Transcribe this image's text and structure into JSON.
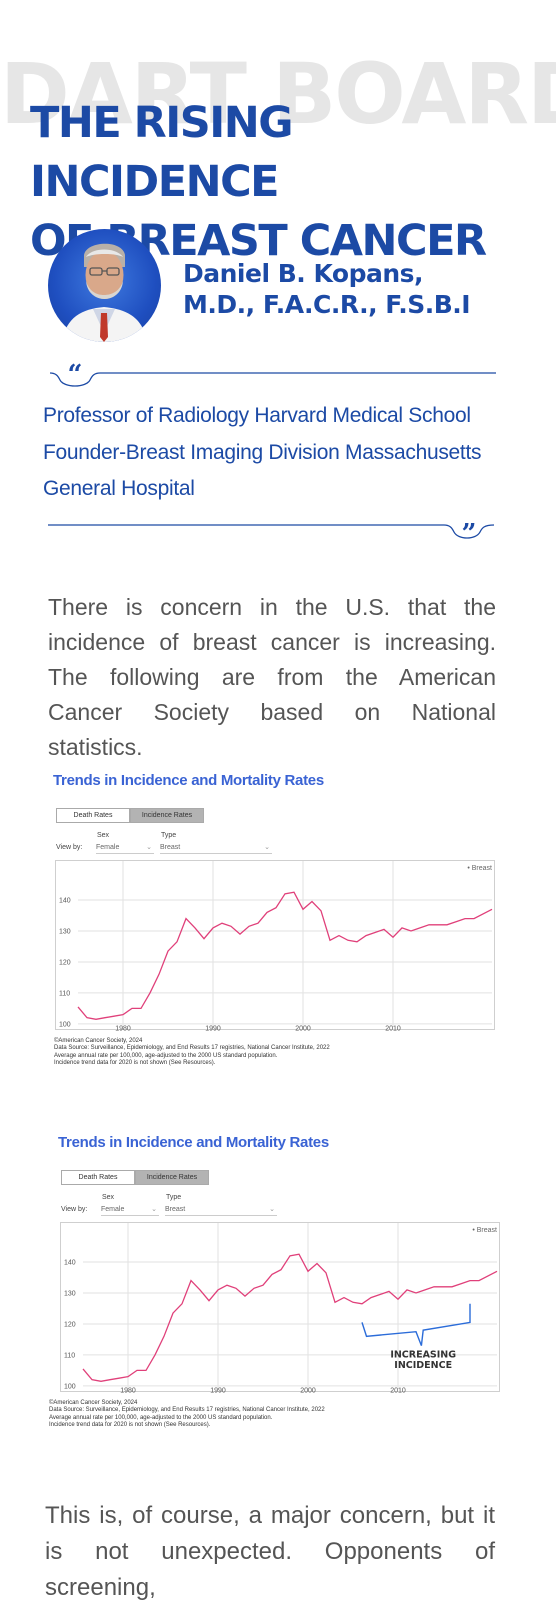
{
  "header": {
    "watermark": "DART BOARD",
    "title_line1": "THE RISING INCIDENCE",
    "title_line2": "OF BREAST CANCER"
  },
  "author": {
    "name_line1": "Daniel B. Kopans,",
    "name_line2": "M.D., F.A.C.R., F.S.B.I"
  },
  "affiliation": {
    "line1": "Professor of Radiology Harvard Medical School",
    "line2": "Founder-Breast Imaging Division Massachusetts",
    "line3": "General Hospital"
  },
  "intro_paragraph": "There is concern in the U.S. that the incidence of breast cancer is increasing.  The following are from the American Cancer Society based on National statistics.",
  "closing_paragraph": "This is, of course, a major concern, but it is not unexpected.  Opponents of screening,",
  "colors": {
    "brand_blue": "#1c4aa5",
    "chart_title": "#3a63d4",
    "series_line": "#e0407a",
    "annotation": "#2b6cd9"
  },
  "charts_ui": {
    "title": "Trends in Incidence and Mortality Rates",
    "tab_death": "Death Rates",
    "tab_incidence": "Incidence Rates",
    "view_by": "View by:",
    "sex_label": "Sex",
    "sex_value": "Female",
    "type_label": "Type",
    "type_value": "Breast",
    "legend": "Breast",
    "note1": "©American Cancer Society, 2024",
    "note2": "Data Source: Surveillance, Epidemiology, and End Results 17 registries, National Cancer Institute, 2022",
    "note3": "Average annual rate per 100,000, age-adjusted to the 2000 US standard population.",
    "note4": "Incidence trend data for 2020 is not shown (See Resources)."
  },
  "annotation": {
    "line1": "INCREASING",
    "line2": "INCIDENCE"
  },
  "chart_data": [
    {
      "type": "line",
      "title": "Trends in Incidence and Mortality Rates",
      "xlabel": "",
      "ylabel": "",
      "xlim": [
        1975,
        2021
      ],
      "ylim": [
        99,
        150
      ],
      "xticks": [
        1980,
        1990,
        2000,
        2010
      ],
      "yticks": [
        100,
        110,
        120,
        130,
        140
      ],
      "grid": true,
      "legend": "top-right",
      "series": [
        {
          "name": "Breast",
          "x": [
            1975,
            1976,
            1977,
            1978,
            1979,
            1980,
            1981,
            1982,
            1983,
            1984,
            1985,
            1986,
            1987,
            1988,
            1989,
            1990,
            1991,
            1992,
            1993,
            1994,
            1995,
            1996,
            1997,
            1998,
            1999,
            2000,
            2001,
            2002,
            2003,
            2004,
            2005,
            2006,
            2007,
            2008,
            2009,
            2010,
            2011,
            2012,
            2013,
            2014,
            2015,
            2016,
            2017,
            2018,
            2019,
            2021
          ],
          "y": [
            105.5,
            102,
            101.5,
            102,
            102.5,
            103,
            105,
            105,
            110,
            116,
            123.5,
            126.5,
            134,
            131,
            127.5,
            131,
            132.5,
            131.5,
            129,
            131.5,
            132.5,
            136,
            137.5,
            142,
            142.5,
            137,
            139.5,
            136.5,
            127,
            128.5,
            127,
            126.5,
            128.5,
            129.5,
            130.5,
            128,
            131,
            130,
            131,
            132,
            132,
            132,
            133,
            134,
            134,
            137
          ]
        }
      ]
    },
    {
      "type": "line",
      "title": "Trends in Incidence and Mortality Rates",
      "xlabel": "",
      "ylabel": "",
      "xlim": [
        1975,
        2021
      ],
      "ylim": [
        99,
        150
      ],
      "xticks": [
        1980,
        1990,
        2000,
        2010
      ],
      "yticks": [
        100,
        110,
        120,
        130,
        140
      ],
      "grid": true,
      "legend": "top-right",
      "annotations": [
        "INCREASING INCIDENCE"
      ],
      "series": [
        {
          "name": "Breast",
          "x": [
            1975,
            1976,
            1977,
            1978,
            1979,
            1980,
            1981,
            1982,
            1983,
            1984,
            1985,
            1986,
            1987,
            1988,
            1989,
            1990,
            1991,
            1992,
            1993,
            1994,
            1995,
            1996,
            1997,
            1998,
            1999,
            2000,
            2001,
            2002,
            2003,
            2004,
            2005,
            2006,
            2007,
            2008,
            2009,
            2010,
            2011,
            2012,
            2013,
            2014,
            2015,
            2016,
            2017,
            2018,
            2019,
            2021
          ],
          "y": [
            105.5,
            102,
            101.5,
            102,
            102.5,
            103,
            105,
            105,
            110,
            116,
            123.5,
            126.5,
            134,
            131,
            127.5,
            131,
            132.5,
            131.5,
            129,
            131.5,
            132.5,
            136,
            137.5,
            142,
            142.5,
            137,
            139.5,
            136.5,
            127,
            128.5,
            127,
            126.5,
            128.5,
            129.5,
            130.5,
            128,
            131,
            130,
            131,
            132,
            132,
            132,
            133,
            134,
            134,
            137
          ]
        }
      ]
    }
  ]
}
